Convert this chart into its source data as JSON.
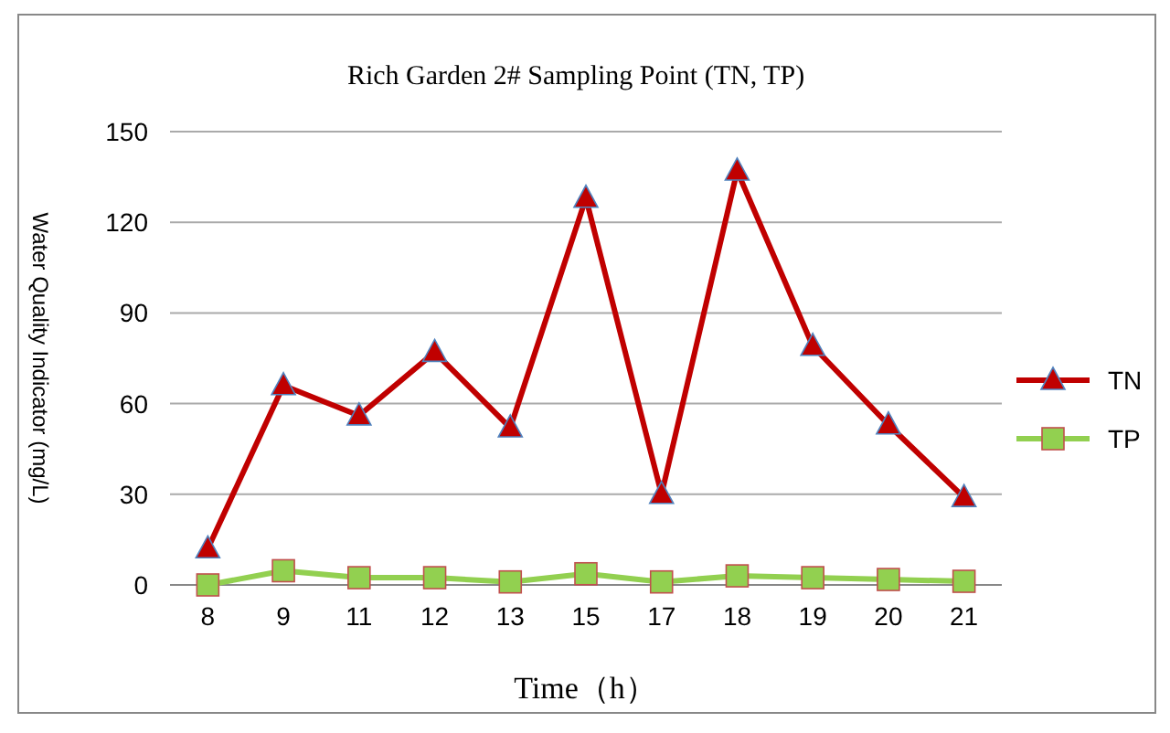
{
  "chart_data": {
    "type": "line",
    "title": "Rich Garden 2# Sampling Point (TN, TP)",
    "xlabel": "Time（h）",
    "ylabel": "Water Quality Indicator (mg/L)",
    "categories": [
      "8",
      "9",
      "11",
      "12",
      "13",
      "15",
      "17",
      "18",
      "19",
      "20",
      "21"
    ],
    "series": [
      {
        "name": "TN",
        "color": "#c00000",
        "marker": "triangle",
        "values": [
          12,
          66,
          56,
          77,
          52,
          128,
          30,
          137,
          79,
          53,
          29
        ]
      },
      {
        "name": "TP",
        "color": "#92d050",
        "marker": "square",
        "values": [
          0,
          4.7,
          2.4,
          2.4,
          1,
          3.7,
          1,
          3,
          2.4,
          1.8,
          1.2
        ]
      }
    ],
    "ylim": [
      0,
      150
    ],
    "yticks": [
      0,
      30,
      60,
      90,
      120,
      150
    ],
    "grid": "y",
    "legend": "right",
    "line_style": "solid"
  }
}
